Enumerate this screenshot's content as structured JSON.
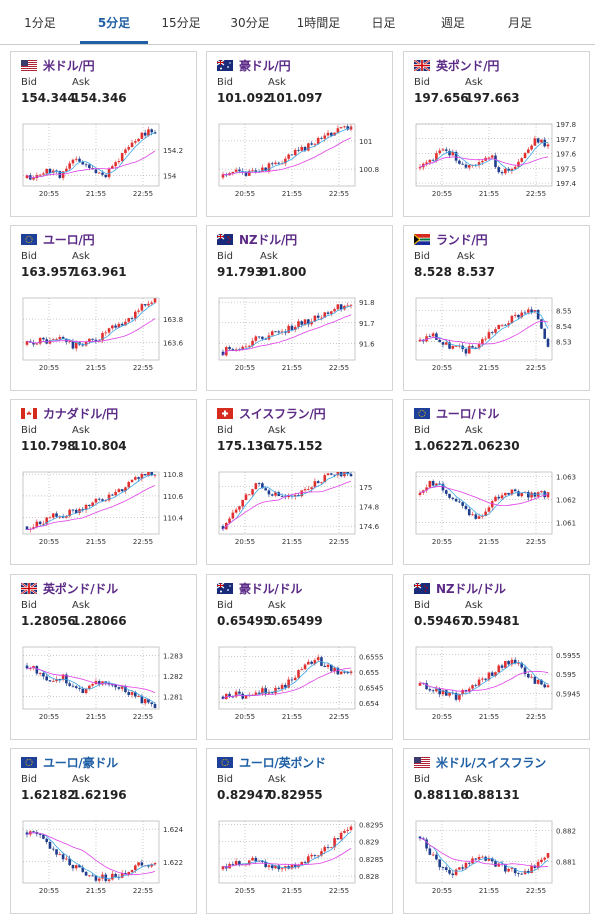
{
  "tabs": [
    "1分足",
    "5分足",
    "15分足",
    "30分足",
    "1時間足",
    "日足",
    "週足",
    "月足"
  ],
  "active_tab": 1,
  "labels": {
    "bid": "Bid",
    "ask": "Ask"
  },
  "x_ticks": [
    "20:55",
    "21:55",
    "22:55"
  ],
  "colors": {
    "up": "#e03030",
    "down": "#1f3d8c",
    "ma_short": "#3da8e8",
    "ma_long": "#e040e8",
    "accent": "#1e5fa6",
    "pair": "#5b2a86"
  },
  "cards": [
    {
      "pair": "米ドル/円",
      "flag": "us",
      "bid": "154.344",
      "ask": "154.346",
      "ticks": [
        "154.2",
        "154"
      ],
      "ylim": [
        153.92,
        154.4
      ],
      "trend": [
        153.98,
        154.0,
        154.05,
        154.0,
        154.12,
        154.1,
        154.0,
        154.02,
        154.15,
        154.25,
        154.33,
        154.35
      ],
      "seed": 11
    },
    {
      "pair": "豪ドル/円",
      "flag": "au",
      "bid": "101.092",
      "ask": "101.097",
      "ticks": [
        "101",
        "100.8"
      ],
      "ylim": [
        100.68,
        101.12
      ],
      "trend": [
        100.74,
        100.78,
        100.76,
        100.8,
        100.82,
        100.85,
        100.9,
        100.95,
        101.0,
        101.05,
        101.08,
        101.09
      ],
      "seed": 23
    },
    {
      "pair": "英ポンド/円",
      "flag": "gb",
      "bid": "197.656",
      "ask": "197.663",
      "ticks": [
        "197.8",
        "197.7",
        "197.6",
        "197.5",
        "197.4"
      ],
      "ylim": [
        197.38,
        197.8
      ],
      "trend": [
        197.5,
        197.55,
        197.62,
        197.58,
        197.5,
        197.55,
        197.6,
        197.45,
        197.52,
        197.6,
        197.7,
        197.66
      ],
      "seed": 37
    },
    {
      "pair": "ユーロ/円",
      "flag": "eu",
      "bid": "163.957",
      "ask": "163.961",
      "ticks": [
        "163.8",
        "163.6"
      ],
      "ylim": [
        163.45,
        163.98
      ],
      "trend": [
        163.58,
        163.62,
        163.6,
        163.64,
        163.56,
        163.6,
        163.62,
        163.7,
        163.74,
        163.82,
        163.92,
        163.96
      ],
      "seed": 41
    },
    {
      "pair": "NZドル/円",
      "flag": "nz",
      "bid": "91.793",
      "ask": "91.800",
      "ticks": [
        "91.8",
        "91.7",
        "91.6"
      ],
      "ylim": [
        91.52,
        91.82
      ],
      "trend": [
        91.56,
        91.58,
        91.6,
        91.62,
        91.64,
        91.66,
        91.68,
        91.7,
        91.72,
        91.75,
        91.78,
        91.79
      ],
      "seed": 53
    },
    {
      "pair": "ランド/円",
      "flag": "za",
      "bid": "8.528",
      "ask": "8.537",
      "ticks": [
        "8.55",
        "8.54",
        "8.53"
      ],
      "ylim": [
        8.518,
        8.558
      ],
      "trend": [
        8.53,
        8.535,
        8.528,
        8.526,
        8.524,
        8.528,
        8.536,
        8.54,
        8.545,
        8.55,
        8.548,
        8.528
      ],
      "seed": 67
    },
    {
      "pair": "カナダドル/円",
      "flag": "ca",
      "bid": "110.798",
      "ask": "110.804",
      "ticks": [
        "110.8",
        "110.6",
        "110.4"
      ],
      "ylim": [
        110.25,
        110.82
      ],
      "trend": [
        110.32,
        110.36,
        110.4,
        110.42,
        110.45,
        110.5,
        110.55,
        110.6,
        110.66,
        110.72,
        110.78,
        110.8
      ],
      "seed": 71
    },
    {
      "pair": "スイスフラン/円",
      "flag": "ch",
      "bid": "175.136",
      "ask": "175.152",
      "ticks": [
        "175",
        "174.8",
        "174.6"
      ],
      "ylim": [
        174.52,
        175.15
      ],
      "trend": [
        174.6,
        174.75,
        174.9,
        175.05,
        174.95,
        174.9,
        174.88,
        174.95,
        175.05,
        175.1,
        175.12,
        175.14
      ],
      "seed": 83
    },
    {
      "pair": "ユーロ/ドル",
      "flag": "eu",
      "bid": "1.06227",
      "ask": "1.06230",
      "ticks": [
        "1.063",
        "1.062",
        "1.061"
      ],
      "ylim": [
        1.0605,
        1.0632
      ],
      "trend": [
        1.0622,
        1.0628,
        1.0625,
        1.062,
        1.0615,
        1.0612,
        1.0618,
        1.0622,
        1.0624,
        1.0622,
        1.0623,
        1.0622
      ],
      "seed": 97
    },
    {
      "pair": "英ポンド/ドル",
      "flag": "gb",
      "bid": "1.28056",
      "ask": "1.28066",
      "ticks": [
        "1.283",
        "1.282",
        "1.281"
      ],
      "ylim": [
        1.2804,
        1.2834
      ],
      "trend": [
        1.2825,
        1.2822,
        1.2818,
        1.282,
        1.2815,
        1.2812,
        1.2818,
        1.2816,
        1.2814,
        1.2812,
        1.2808,
        1.2806
      ],
      "seed": 101
    },
    {
      "pair": "豪ドル/ドル",
      "flag": "au",
      "bid": "0.65495",
      "ask": "0.65499",
      "ticks": [
        "0.6555",
        "0.655",
        "0.6545",
        "0.654"
      ],
      "ylim": [
        0.6538,
        0.6558
      ],
      "trend": [
        0.6542,
        0.6543,
        0.6542,
        0.6544,
        0.6543,
        0.6545,
        0.6548,
        0.6552,
        0.6554,
        0.6552,
        0.655,
        0.65495
      ],
      "seed": 113
    },
    {
      "pair": "NZドル/ドル",
      "flag": "nz",
      "bid": "0.59467",
      "ask": "0.59481",
      "ticks": [
        "0.5955",
        "0.595",
        "0.5945"
      ],
      "ylim": [
        0.5941,
        0.5957
      ],
      "trend": [
        0.5947,
        0.5946,
        0.5945,
        0.5944,
        0.5946,
        0.5948,
        0.595,
        0.5952,
        0.5954,
        0.595,
        0.5948,
        0.5947
      ],
      "seed": 127
    },
    {
      "pair": "ユーロ/豪ドル",
      "flag": "eu",
      "bid": "1.62182",
      "ask": "1.62196",
      "ticks": [
        "1.624",
        "1.622"
      ],
      "ylim": [
        1.6207,
        1.6245
      ],
      "trend": [
        1.6238,
        1.6236,
        1.623,
        1.6222,
        1.6218,
        1.6214,
        1.621,
        1.621,
        1.6212,
        1.6216,
        1.622,
        1.6218
      ],
      "seed": 131
    },
    {
      "pair": "ユーロ/英ポンド",
      "flag": "eu",
      "bid": "0.82947",
      "ask": "0.82955",
      "ticks": [
        "0.8295",
        "0.829",
        "0.8285",
        "0.828"
      ],
      "ylim": [
        0.8278,
        0.8296
      ],
      "trend": [
        0.8282,
        0.8284,
        0.8284,
        0.8285,
        0.8283,
        0.8282,
        0.8283,
        0.8284,
        0.8286,
        0.8288,
        0.8292,
        0.8295
      ],
      "seed": 139
    },
    {
      "pair": "米ドル/スイスフラン",
      "flag": "us",
      "bid": "0.88116",
      "ask": "0.88131",
      "ticks": [
        "0.882",
        "0.881"
      ],
      "ylim": [
        0.8803,
        0.8823
      ],
      "trend": [
        0.8818,
        0.8812,
        0.8808,
        0.8806,
        0.881,
        0.8812,
        0.881,
        0.8808,
        0.8807,
        0.8806,
        0.8809,
        0.8812
      ],
      "seed": 149
    }
  ]
}
